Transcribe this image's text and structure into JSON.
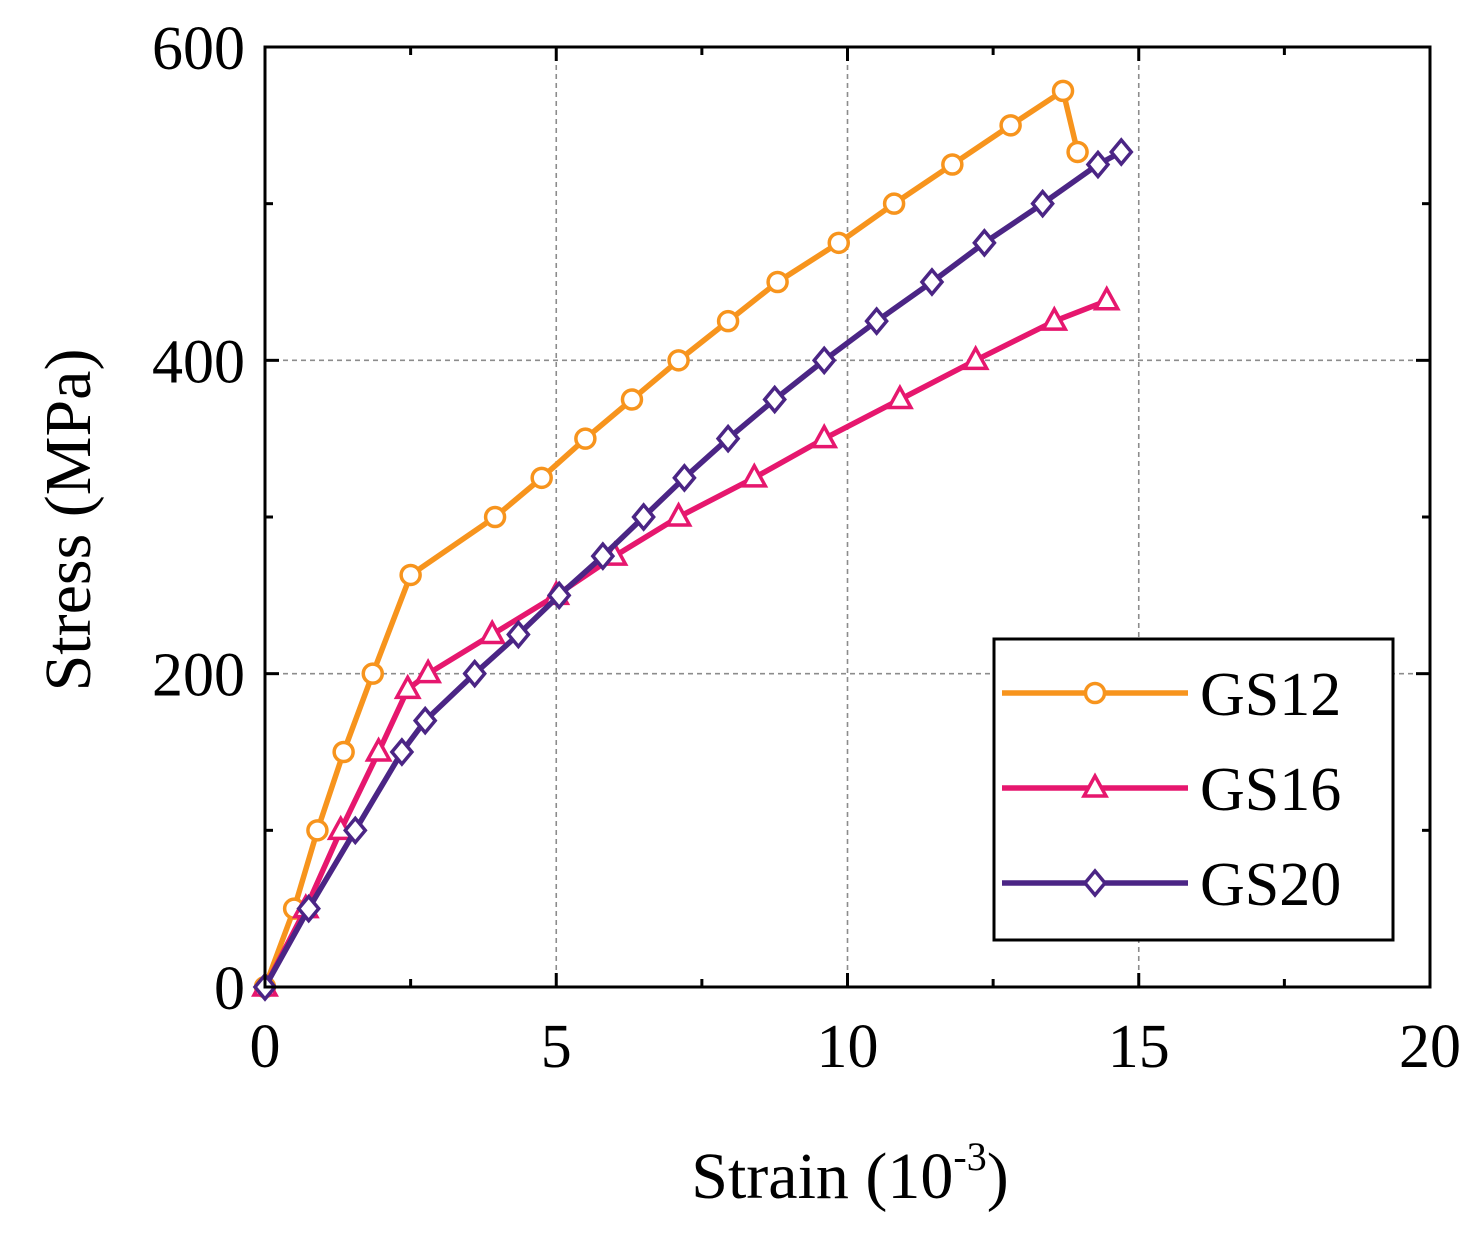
{
  "chart_data": {
    "type": "line",
    "title": "",
    "xlabel": "Strain (10",
    "xlabel_sup": "-3",
    "xlabel_close": ")",
    "ylabel": "Stress (MPa)",
    "xlim": [
      0,
      20
    ],
    "ylim": [
      0,
      600
    ],
    "xticks": [
      0,
      5,
      10,
      15,
      20
    ],
    "yticks": [
      0,
      200,
      400,
      600
    ],
    "xtick_labels": [
      "0",
      "5",
      "10",
      "15",
      "20"
    ],
    "ytick_labels": [
      "0",
      "200",
      "400",
      "600"
    ],
    "grid": true,
    "legend_position": "bottom-right",
    "series": [
      {
        "name": "GS12",
        "color": "#f7941d",
        "marker": "circle",
        "x": [
          0,
          0.5,
          0.9,
          1.35,
          1.85,
          2.5,
          3.95,
          4.75,
          5.5,
          6.3,
          7.1,
          7.95,
          8.8,
          9.85,
          10.8,
          11.8,
          12.8,
          13.7,
          13.95
        ],
        "y": [
          0,
          50,
          100,
          150,
          200,
          263,
          300,
          325,
          350,
          375,
          400,
          425,
          450,
          475,
          500,
          525,
          550,
          572,
          533
        ]
      },
      {
        "name": "GS16",
        "color": "#e6176e",
        "marker": "triangle",
        "x": [
          0,
          0.7,
          1.3,
          1.95,
          2.45,
          2.8,
          3.9,
          5.0,
          6.0,
          7.1,
          8.4,
          9.6,
          10.9,
          12.2,
          13.55,
          14.45
        ],
        "y": [
          0,
          50,
          100,
          150,
          190,
          200,
          225,
          250,
          275,
          300,
          325,
          350,
          375,
          400,
          425,
          438
        ]
      },
      {
        "name": "GS20",
        "color": "#4b2585",
        "marker": "diamond",
        "x": [
          0,
          0.75,
          1.55,
          2.35,
          2.75,
          3.6,
          4.35,
          5.05,
          5.8,
          6.5,
          7.2,
          7.95,
          8.75,
          9.6,
          10.5,
          11.45,
          12.35,
          13.35,
          14.3,
          14.7
        ],
        "y": [
          0,
          50,
          100,
          150,
          170,
          200,
          225,
          250,
          275,
          300,
          325,
          350,
          375,
          400,
          425,
          450,
          475,
          500,
          525,
          533
        ]
      }
    ]
  }
}
